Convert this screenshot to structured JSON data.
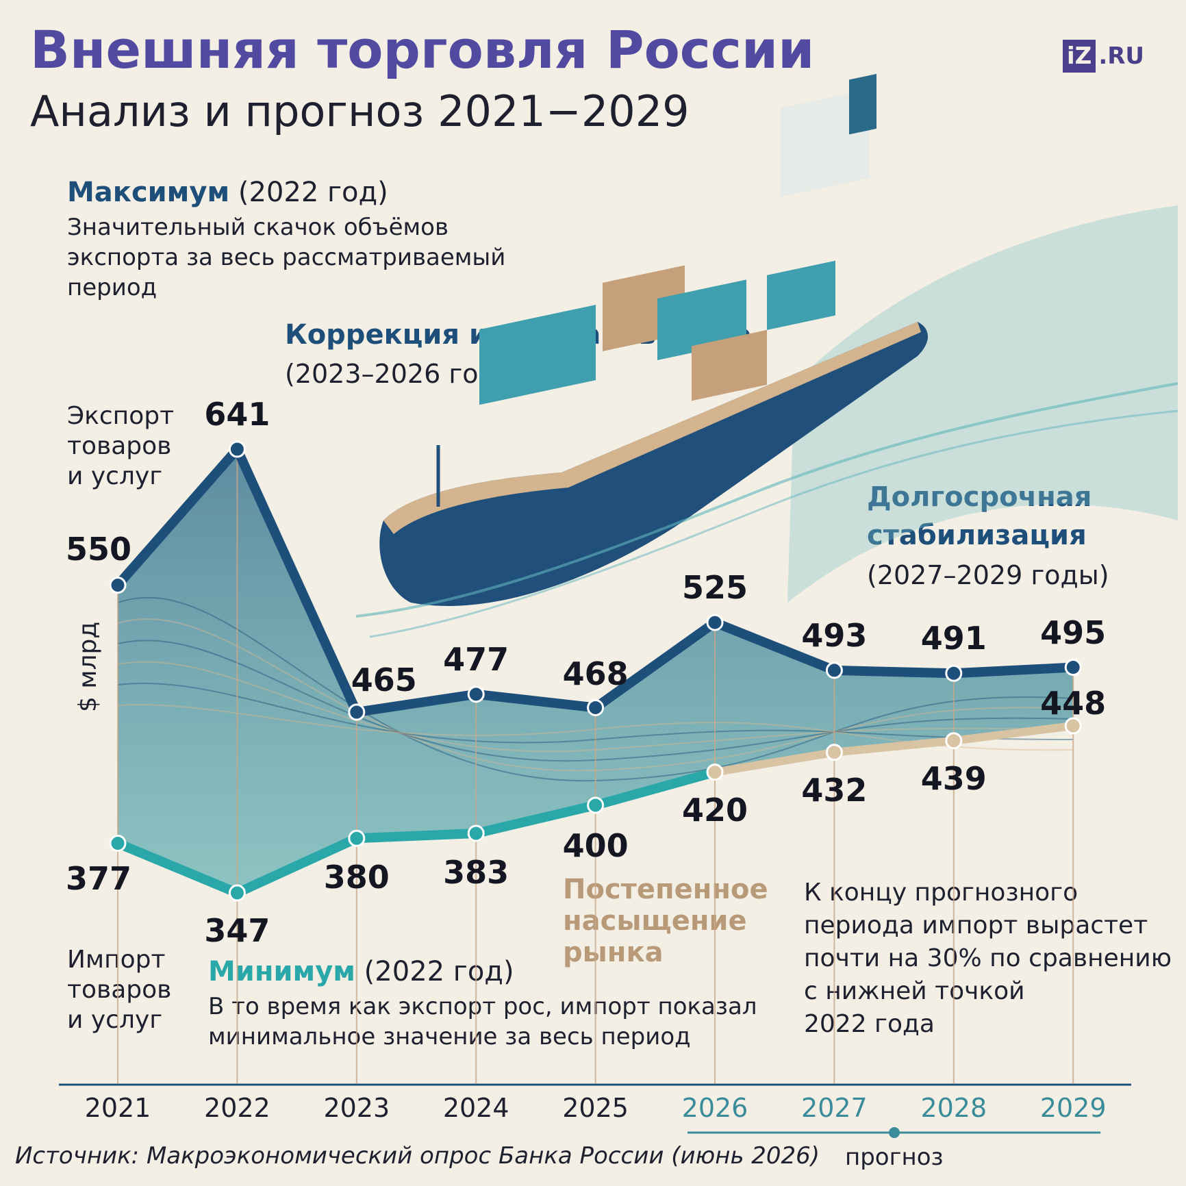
{
  "header": {
    "title": "Внешняя торговля России",
    "subtitle": "Анализ и прогноз 2021−2029",
    "logo_box": "iZ",
    "logo_suffix": ".RU"
  },
  "annotations": {
    "maximum": {
      "head": "Максимум",
      "period": " (2022 год)",
      "lines": [
        "Значительный скачок объёмов",
        "экспорта за весь рассматриваемый",
        "период"
      ]
    },
    "correction": {
      "head": "Коррекция и восстановление",
      "period": "(2023–2026 годы)"
    },
    "stabilization": {
      "head_lines": [
        "Долгосрочная",
        "стабилизация"
      ],
      "period": "(2027–2029 годы)"
    },
    "minimum": {
      "head": "Минимум",
      "period": " (2022 год)",
      "lines": [
        "В то время как экспорт рос, импорт показал",
        "минимальное значение за весь период"
      ]
    },
    "saturation": {
      "lines": [
        "Постепенное",
        "насыщение",
        "рынка"
      ]
    },
    "import_growth": {
      "lines": [
        "К концу прогнозного",
        "периода импорт вырастет",
        "почти на 30% по сравнению",
        "с нижней точкой",
        "2022 года"
      ]
    }
  },
  "chart_data": {
    "type": "area",
    "x": [
      "2021",
      "2022",
      "2023",
      "2024",
      "2025",
      "2026",
      "2027",
      "2028",
      "2029"
    ],
    "series": [
      {
        "name": "Экспорт товаров и услуг",
        "values": [
          550,
          641,
          465,
          477,
          468,
          525,
          493,
          491,
          495
        ],
        "color": "#1d4f7a"
      },
      {
        "name": "Импорт товаров и услуг",
        "values": [
          377,
          347,
          380,
          383,
          400,
          420,
          432,
          439,
          448
        ],
        "color": "#2aa7a9"
      }
    ],
    "export_label": [
      "Экспорт",
      "товаров",
      "и услуг"
    ],
    "import_label": [
      "Импорт",
      "товаров",
      "и услуг"
    ],
    "ylabel": "$ млрд",
    "forecast_years": [
      "2026",
      "2027",
      "2028",
      "2029"
    ],
    "forecast_label": "прогноз",
    "legend": "inline-left",
    "grid": false,
    "colors": {
      "export": "#1d4f7a",
      "import": "#2aa7a9",
      "forecast_import": "#d8c3a3",
      "forecast_axis": "#3a8c9a"
    }
  },
  "footer": {
    "source": "Источник: Макроэкономический опрос Банка России (июнь 2026)"
  }
}
